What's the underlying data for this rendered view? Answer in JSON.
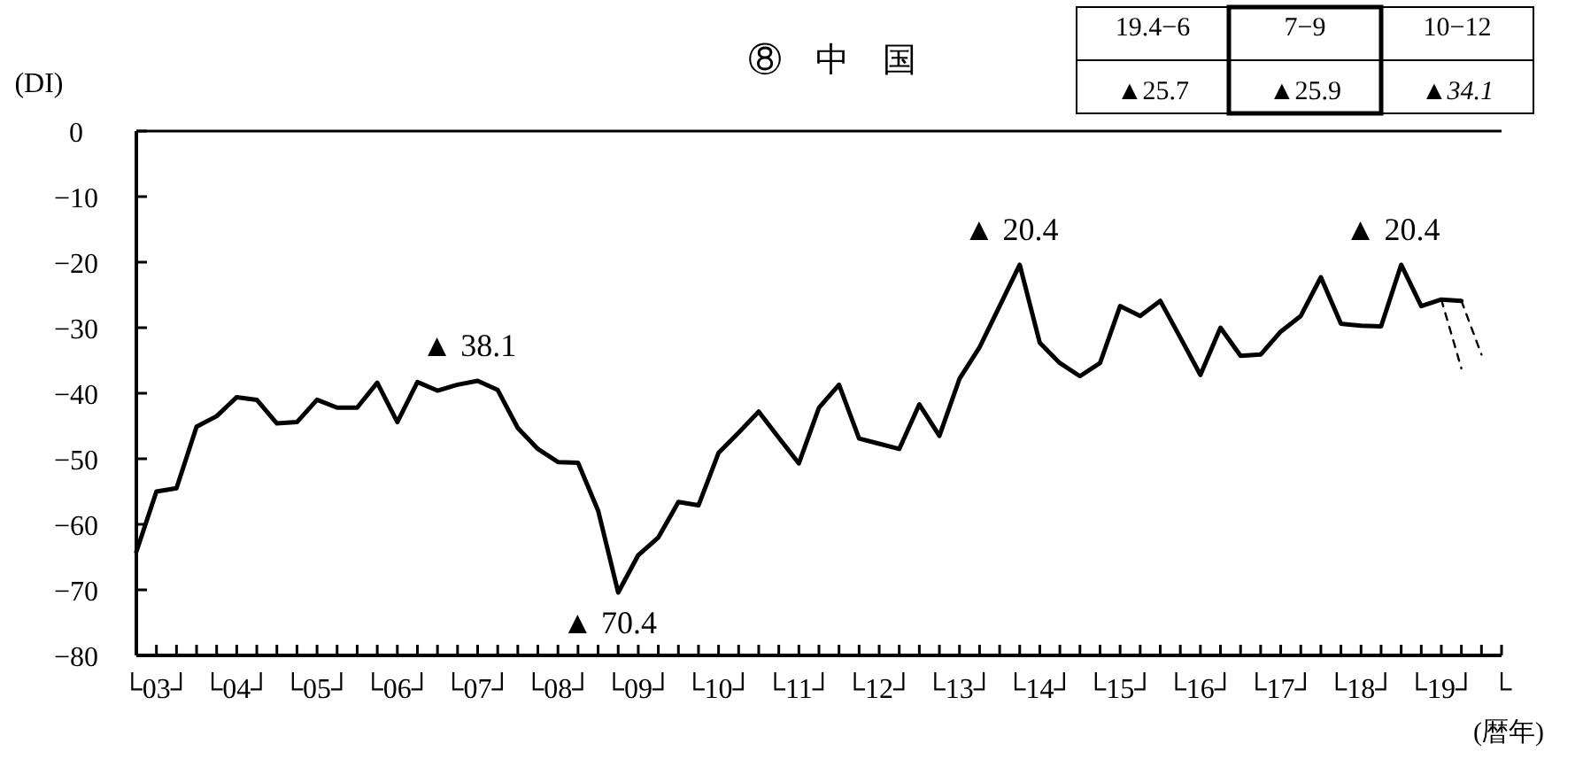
{
  "chart_data": {
    "type": "line",
    "title": "⑧　中　国",
    "ylabel": "(DI)",
    "xlabel": "(暦年)",
    "annotations": [
      {
        "text": "▲ 38.1",
        "y": -38.1
      },
      {
        "text": "▲ 70.4",
        "y": -70.4
      },
      {
        "text": "▲ 20.4",
        "y": -20.4
      },
      {
        "text": "▲ 20.4",
        "y": -20.4
      },
      "19.4−6",
      "7−9",
      "10−12",
      "▲25.7",
      "▲25.9",
      "▲34.1"
    ],
    "categories": [
      null,
      "└03┘",
      null,
      null,
      null,
      "└04┘",
      null,
      null,
      null,
      "└05┘",
      null,
      null,
      null,
      "└06┘",
      null,
      null,
      null,
      "└07┘",
      null,
      null,
      null,
      "└08┘",
      null,
      null,
      null,
      "└09┘",
      null,
      null,
      null,
      "└10┘",
      null,
      null,
      null,
      "└11┘",
      null,
      null,
      null,
      "└12┘",
      null,
      null,
      null,
      "└13┘",
      null,
      null,
      null,
      "└14┘",
      null,
      null,
      null,
      "└15┘",
      null,
      null,
      null,
      "└16┘",
      null,
      null,
      null,
      "└17┘",
      null,
      null,
      null,
      "└18┘",
      null,
      null,
      null,
      "└19┘",
      null,
      null,
      "└"
    ],
    "series": [
      {
        "color": "#000000",
        "line_style": "solid",
        "values": [
          -64.2,
          -55,
          -54.5,
          -45.1,
          -43.5,
          -40.6,
          -41,
          -44.6,
          -44.4,
          -41,
          -42.2,
          -42.2,
          -38.4,
          -44.4,
          -38.3,
          -39.6,
          -38.7,
          -38.1,
          -39.5,
          -45.3,
          -48.5,
          -50.5,
          -50.6,
          -57.9,
          -70.4,
          -64.7,
          -62,
          -56.6,
          -57.1,
          -49.1,
          -46,
          -42.8,
          -46.8,
          -50.7,
          -42.2,
          -38.7,
          -46.9,
          -47.7,
          -48.5,
          -41.7,
          -46.5,
          -37.8,
          -33,
          -26.7,
          -20.4,
          -32.3,
          -35.4,
          -37.4,
          -35.4,
          -26.7,
          -28.2,
          -25.9,
          -31.5,
          -37.2,
          -30,
          -34.3,
          -34.1,
          -30.6,
          -28.2,
          -22.3,
          -29.4,
          -29.7,
          -29.8,
          -20.4,
          -26.7,
          -25.7,
          -25.9,
          null,
          null
        ]
      },
      {
        "color": "#000000",
        "line_style": "dashed",
        "values": [
          null,
          null,
          null,
          null,
          null,
          null,
          null,
          null,
          null,
          null,
          null,
          null,
          null,
          null,
          null,
          null,
          null,
          null,
          null,
          null,
          null,
          null,
          null,
          null,
          null,
          null,
          null,
          null,
          null,
          null,
          null,
          null,
          null,
          null,
          null,
          null,
          null,
          null,
          null,
          null,
          null,
          null,
          null,
          null,
          null,
          null,
          null,
          null,
          null,
          null,
          null,
          null,
          null,
          null,
          null,
          null,
          null,
          null,
          null,
          null,
          null,
          null,
          null,
          null,
          null,
          -25.7,
          -36.2,
          null,
          null
        ]
      },
      {
        "color": "#000000",
        "line_style": "dashed",
        "values": [
          null,
          null,
          null,
          null,
          null,
          null,
          null,
          null,
          null,
          null,
          null,
          null,
          null,
          null,
          null,
          null,
          null,
          null,
          null,
          null,
          null,
          null,
          null,
          null,
          null,
          null,
          null,
          null,
          null,
          null,
          null,
          null,
          null,
          null,
          null,
          null,
          null,
          null,
          null,
          null,
          null,
          null,
          null,
          null,
          null,
          null,
          null,
          null,
          null,
          null,
          null,
          null,
          null,
          null,
          null,
          null,
          null,
          null,
          null,
          null,
          null,
          null,
          null,
          null,
          null,
          null,
          -25.9,
          -34.1,
          null
        ]
      }
    ],
    "ylim": [
      -80,
      0
    ],
    "yticks": [
      {
        "value": 0,
        "label": "0"
      },
      {
        "value": -10,
        "label": "−10"
      },
      {
        "value": -20,
        "label": "−20"
      },
      {
        "value": -30,
        "label": "−30"
      },
      {
        "value": -40,
        "label": "−40"
      },
      {
        "value": -50,
        "label": "−50"
      },
      {
        "value": -60,
        "label": "−60"
      },
      {
        "value": -70,
        "label": "−70"
      },
      {
        "value": -80,
        "label": "−80"
      }
    ]
  }
}
